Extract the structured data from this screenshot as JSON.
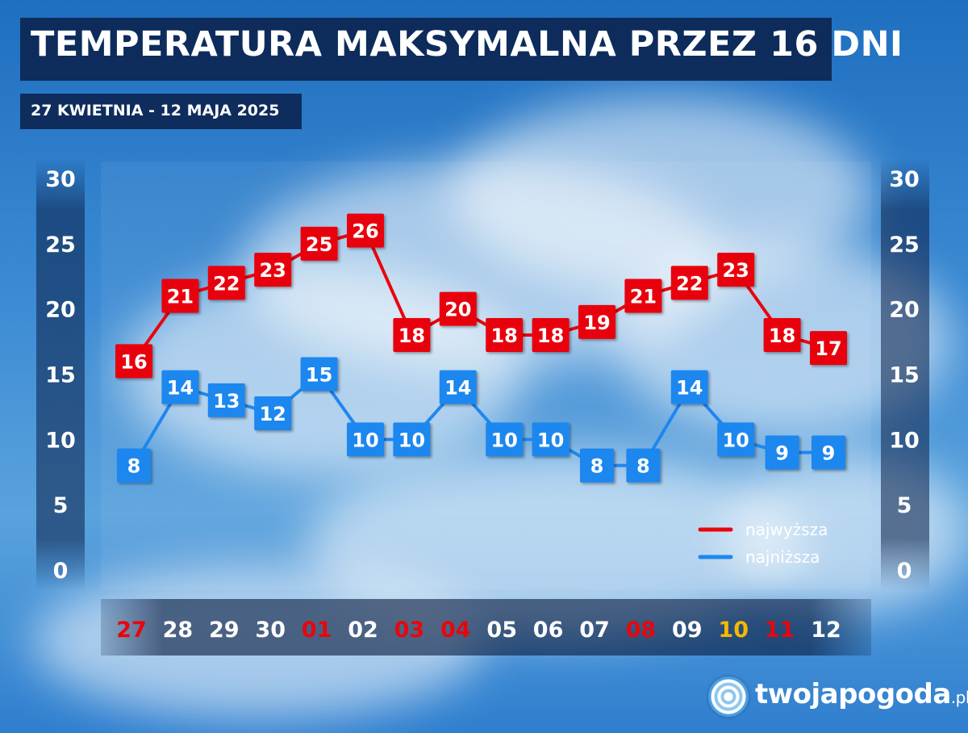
{
  "header": {
    "title": "TEMPERATURA MAKSYMALNA PRZEZ 16 DNI",
    "subtitle": "27 KWIETNIA - 12 MAJA 2025"
  },
  "logo": {
    "name": "twojapogoda",
    "suffix": ".pl"
  },
  "colors": {
    "high": "#e8060c",
    "low": "#1e87ef",
    "axis_text": "#ffffff",
    "date_normal": "#ffffff",
    "date_red": "#e8060c",
    "date_yellow": "#f5b800"
  },
  "chart_data": {
    "type": "line",
    "title": "TEMPERATURA MAKSYMALNA PRZEZ 16 DNI",
    "subtitle": "27 KWIETNIA - 12 MAJA 2025",
    "categories": [
      "27",
      "28",
      "29",
      "30",
      "01",
      "02",
      "03",
      "04",
      "05",
      "06",
      "07",
      "08",
      "09",
      "10",
      "11",
      "12"
    ],
    "category_colors": [
      "red",
      "white",
      "white",
      "white",
      "red",
      "white",
      "red",
      "red",
      "white",
      "white",
      "white",
      "red",
      "white",
      "yellow",
      "red",
      "white"
    ],
    "series": [
      {
        "name": "najwyższa",
        "color": "#e8060c",
        "values": [
          16,
          21,
          22,
          23,
          25,
          26,
          18,
          20,
          18,
          18,
          19,
          21,
          22,
          23,
          18,
          17
        ]
      },
      {
        "name": "najniższa",
        "color": "#1e87ef",
        "values": [
          8,
          14,
          13,
          12,
          15,
          10,
          10,
          14,
          10,
          10,
          8,
          8,
          14,
          10,
          9,
          9
        ]
      }
    ],
    "ylim": [
      0,
      30
    ],
    "yticks": [
      0,
      5,
      10,
      15,
      20,
      25,
      30
    ],
    "axes": "left-and-right",
    "legend_position": "bottom-right",
    "grid": false,
    "data_labels": true
  }
}
